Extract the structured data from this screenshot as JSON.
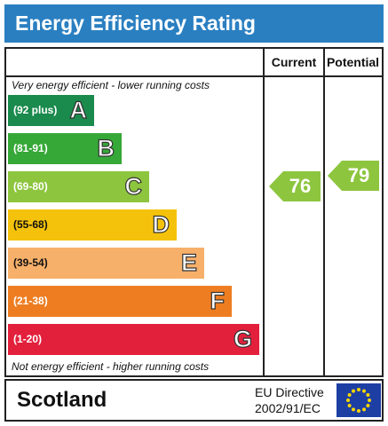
{
  "header": {
    "title": "Energy Efficiency Rating"
  },
  "columns": {
    "current": "Current",
    "potential": "Potential"
  },
  "notes": {
    "top": "Very energy efficient - lower running costs",
    "bottom": "Not energy efficient - higher running costs"
  },
  "bands": [
    {
      "range": "(92 plus)",
      "letter": "A",
      "color": "#1a8a4d"
    },
    {
      "range": "(81-91)",
      "letter": "B",
      "color": "#36a838"
    },
    {
      "range": "(69-80)",
      "letter": "C",
      "color": "#8dc53f"
    },
    {
      "range": "(55-68)",
      "letter": "D",
      "color": "#f5c20b"
    },
    {
      "range": "(39-54)",
      "letter": "E",
      "color": "#f7b06a"
    },
    {
      "range": "(21-38)",
      "letter": "F",
      "color": "#ee7d21"
    },
    {
      "range": "(1-20)",
      "letter": "G",
      "color": "#e3203c"
    }
  ],
  "ratings": {
    "current": {
      "value": "76",
      "color": "#8dc53f"
    },
    "potential": {
      "value": "79",
      "color": "#8dc53f"
    }
  },
  "footer": {
    "country": "Scotland",
    "directive_line1": "EU Directive",
    "directive_line2": "2002/91/EC",
    "flag_icon": "eu-flag-icon"
  }
}
